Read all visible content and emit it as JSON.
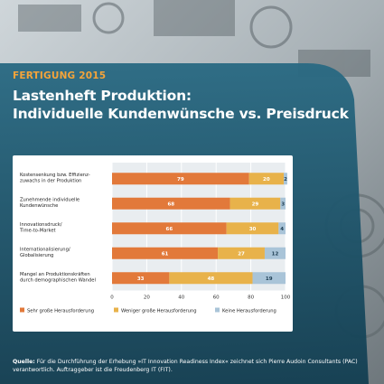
{
  "header": {
    "tag": "FERTIGUNG 2015",
    "title_line1": "Lastenheft Produktion:",
    "title_line2": "Individuelle Kundenwünsche vs. Preisdruck"
  },
  "footer": {
    "label": "Quelle:",
    "text": "Für die Durchführung der Erhebung »IT Innovation Readiness Index« zeichnet sich Pierre Audoin Consultants (PAC) verantwortlich. Auftraggeber ist die Freudenberg IT (FIT)."
  },
  "chart_data": {
    "type": "bar",
    "orientation": "horizontal",
    "stacked": true,
    "categories": [
      [
        "Kostensenkung bzw. Effizienz-",
        "zuwachs in der Produktion"
      ],
      [
        "Zunehmende individuelle",
        "Kundenwünsche"
      ],
      [
        "Innovationsdruck/",
        "Time-to-Market"
      ],
      [
        "Internationalisierung/",
        "Globalisierung"
      ],
      [
        "Mangel an Produktionskräften",
        "durch demographischen Wandel"
      ]
    ],
    "series": [
      {
        "name": "Sehr große Herausforderung",
        "color": "#e2793a",
        "values": [
          79,
          68,
          66,
          61,
          33
        ]
      },
      {
        "name": "Weniger große Herausforderung",
        "color": "#e8b24a",
        "values": [
          20,
          29,
          30,
          27,
          48
        ]
      },
      {
        "name": "Keine Herausforderung",
        "color": "#a9c4d8",
        "values": [
          2,
          3,
          4,
          12,
          19
        ]
      }
    ],
    "xlim": [
      0,
      100
    ],
    "xticks": [
      0,
      20,
      40,
      60,
      80,
      100
    ],
    "grid": true,
    "legend_position": "bottom"
  }
}
